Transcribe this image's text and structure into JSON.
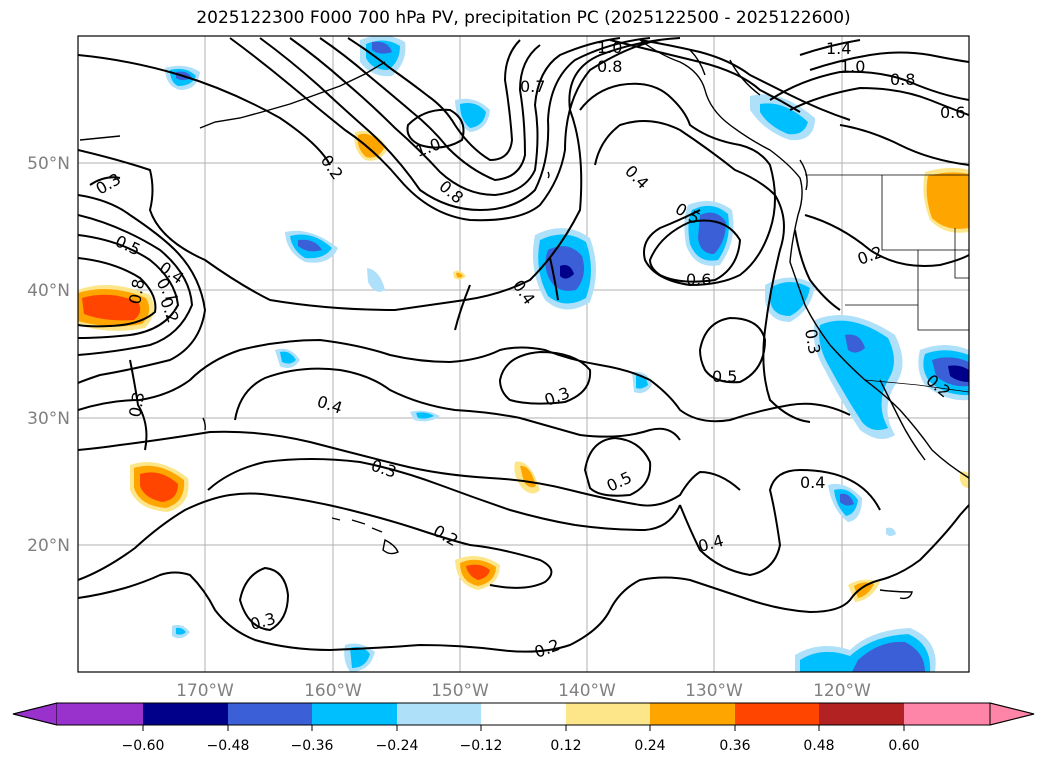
{
  "title": "2025122300 F000 700 hPa PV, precipitation PC (2025122500 - 2025122600)",
  "map": {
    "lon_range": [
      -180,
      -110
    ],
    "lat_range": [
      10,
      60
    ],
    "lon_ticks": [
      "170°W",
      "160°W",
      "150°W",
      "140°W",
      "130°W",
      "120°W"
    ],
    "lat_ticks": [
      "20°N",
      "30°N",
      "40°N",
      "50°N"
    ]
  },
  "contour_labels": [
    "1.0",
    "0.8",
    "0.7",
    "1.4",
    "1.0",
    "0.8",
    "0.6",
    "0.2",
    "1.0",
    "0.8",
    "0.4",
    "0.3",
    "0.5",
    "0.4",
    "0.8",
    "0.7",
    "0.5",
    "0.2",
    "0.6",
    "0.4",
    "0.3",
    "0.3",
    "0.5",
    "0.4",
    "0.3",
    "0.5",
    "0.2",
    "0.4",
    "0.4",
    "0.2",
    "0.3",
    "0.2",
    "0.3",
    "0.2"
  ],
  "colorbar": {
    "colors": [
      "#9932cc",
      "#00008b",
      "#3b5fd6",
      "#00bfff",
      "#aee0fa",
      "#ffffff",
      "#fde68a",
      "#ffa500",
      "#ff4500",
      "#b22222",
      "#ff85a8"
    ],
    "tick_labels": [
      "−0.60",
      "−0.48",
      "−0.36",
      "−0.24",
      "−0.12",
      "0.12",
      "0.24",
      "0.36",
      "0.48",
      "0.60"
    ]
  },
  "colors": {
    "gridline": "#b0b0b0",
    "frame": "#000000",
    "neg_light": "#aee0fa",
    "neg_mid": "#00bfff",
    "neg_dark": "#3b5fd6",
    "neg_darker": "#00008b",
    "pos_light": "#fde68a",
    "pos_mid": "#ffa500",
    "pos_dark": "#ff4500"
  }
}
